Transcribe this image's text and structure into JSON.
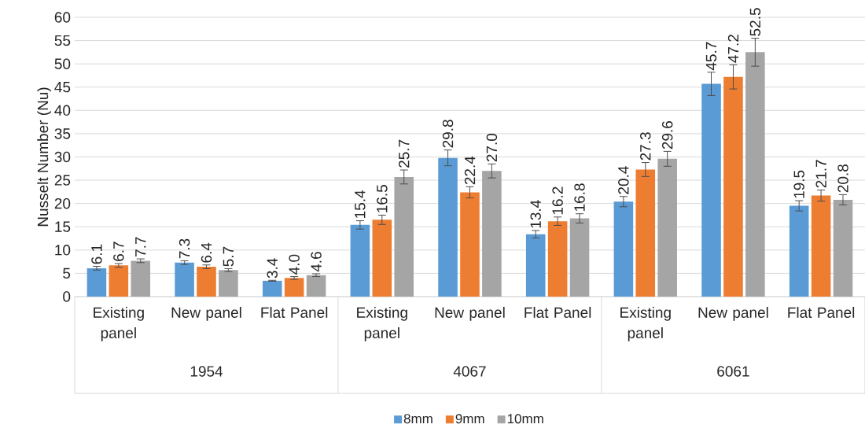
{
  "chart_data": {
    "type": "bar",
    "ylabel": "Nusselt Number (Nu)",
    "categories": [
      "Existing panel",
      "New panel",
      "Flat Panel",
      "Existing panel",
      "New panel",
      "Flat Panel",
      "Existing panel",
      "New panel",
      "Flat Panel"
    ],
    "annotations": [
      "1954",
      "4067",
      "6061"
    ],
    "series": [
      {
        "name": "8mm",
        "color": "#5b9bd5",
        "values": [
          6.1,
          7.3,
          3.4,
          15.4,
          29.8,
          13.4,
          20.4,
          45.7,
          19.5
        ],
        "value_labels": [
          "6.1",
          "7.3",
          "3.4",
          "15.4",
          "29.8",
          "13.4",
          "20.4",
          "45.7",
          "19.5"
        ],
        "errors": [
          0.4,
          0.4,
          0.1,
          0.9,
          1.7,
          0.8,
          1.1,
          2.5,
          1.1
        ]
      },
      {
        "name": "9mm",
        "color": "#ed7d31",
        "values": [
          6.7,
          6.4,
          4.0,
          16.5,
          22.4,
          16.2,
          27.3,
          47.2,
          21.7
        ],
        "value_labels": [
          "6.7",
          "6.4",
          "4.0",
          "16.5",
          "22.4",
          "16.2",
          "27.3",
          "47.2",
          "21.7"
        ],
        "errors": [
          0.4,
          0.4,
          0.3,
          1.0,
          1.2,
          0.9,
          1.5,
          2.6,
          1.2
        ]
      },
      {
        "name": "10mm",
        "color": "#a5a5a5",
        "values": [
          7.7,
          5.7,
          4.6,
          25.7,
          27.0,
          16.8,
          29.6,
          52.5,
          20.8
        ],
        "value_labels": [
          "7.7",
          "5.7",
          "4.6",
          "25.7",
          "27.0",
          "16.8",
          "29.6",
          "52.5",
          "20.8"
        ],
        "errors": [
          0.4,
          0.3,
          0.3,
          1.5,
          1.5,
          1.0,
          1.6,
          3.0,
          1.1
        ]
      }
    ],
    "ylim": [
      0,
      60
    ],
    "yticks": [
      0,
      5,
      10,
      15,
      20,
      25,
      30,
      35,
      40,
      45,
      50,
      55,
      60
    ],
    "grid": "y",
    "legend": "bottom"
  }
}
